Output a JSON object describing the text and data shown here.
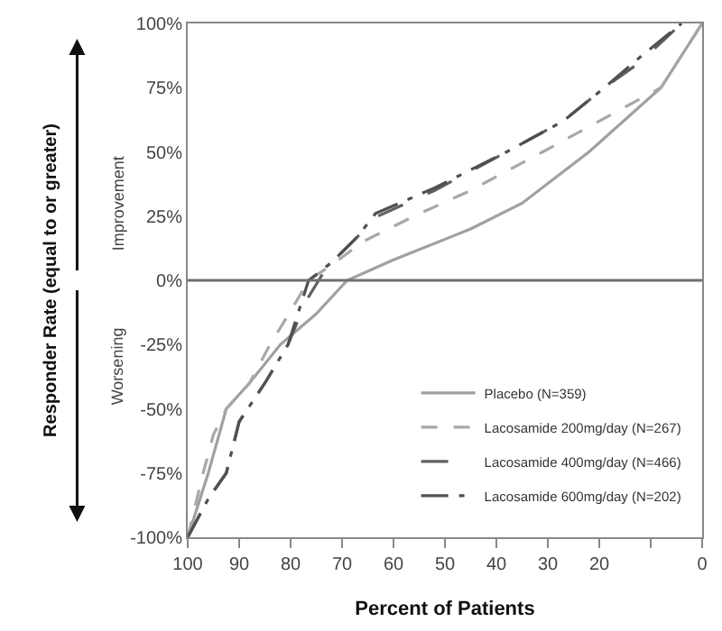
{
  "chart_data": {
    "type": "line",
    "xlabel": "Percent of Patients",
    "ylabel": "Responder Rate (equal to or greater)",
    "annotations": [
      "Improvement",
      "Worsening"
    ],
    "xlim": [
      100,
      0
    ],
    "xticks": [
      100,
      90,
      80,
      70,
      60,
      50,
      40,
      30,
      20,
      {
        "value": 10,
        "label": null
      },
      0
    ],
    "ylim": [
      -100,
      100
    ],
    "yticks": [
      {
        "value": -100,
        "label": "-100%"
      },
      {
        "value": -75,
        "label": "-75%"
      },
      {
        "value": -50,
        "label": "-50%"
      },
      {
        "value": -25,
        "label": "-25%"
      },
      {
        "value": 0,
        "label": "0%"
      },
      {
        "value": 25,
        "label": "25%"
      },
      {
        "value": 50,
        "label": "50%"
      },
      {
        "value": 75,
        "label": "75%"
      },
      {
        "value": 100,
        "label": "100%"
      }
    ],
    "legend": "bottom right",
    "ref_lines": [
      {
        "axis": "y",
        "value": 0,
        "color": "#707070"
      }
    ],
    "series": [
      {
        "name": "Placebo (N=359)",
        "color": "#a0a0a0",
        "line_style": "solid",
        "x": [
          100,
          96,
          92.5,
          88,
          82,
          75,
          69,
          60,
          45,
          35,
          22,
          8,
          0
        ],
        "values": [
          -100,
          -75,
          -50,
          -40,
          -25,
          -13,
          0,
          8,
          20,
          30,
          50,
          75,
          100
        ]
      },
      {
        "name": "Lacosamide 200mg/day (N=267)",
        "color": "#a8a8a8",
        "line_style": "dashed",
        "x": [
          100,
          97,
          95,
          92.5,
          88,
          84,
          80,
          76.5,
          72,
          66,
          56,
          45,
          31,
          20,
          8,
          0
        ],
        "values": [
          -100,
          -75,
          -60,
          -50,
          -40,
          -25,
          -12,
          0,
          6,
          15,
          25,
          35,
          50,
          62,
          75,
          100
        ]
      },
      {
        "name": "Lacosamide 400mg/day (N=466)",
        "color": "#606060",
        "line_style": "dashed",
        "x": [
          100,
          96,
          92.5,
          90,
          85,
          80.5,
          77,
          73,
          68,
          63,
          52,
          38,
          27,
          19,
          12,
          4
        ],
        "values": [
          -100,
          -85,
          -75,
          -55,
          -40,
          -25,
          -8,
          5,
          15,
          25,
          35,
          50,
          62,
          75,
          85,
          100
        ]
      },
      {
        "name": "Lacosamide 600mg/day (N=202)",
        "color": "#505050",
        "line_style": "dashed",
        "x": [
          100,
          96,
          92.5,
          90,
          85,
          80.5,
          76.5,
          72,
          67,
          63.5,
          52,
          38,
          27,
          19,
          12,
          4
        ],
        "values": [
          -100,
          -85,
          -75,
          -55,
          -40,
          -25,
          0,
          7,
          17,
          26,
          36,
          50,
          62,
          75,
          87,
          100
        ]
      }
    ]
  }
}
